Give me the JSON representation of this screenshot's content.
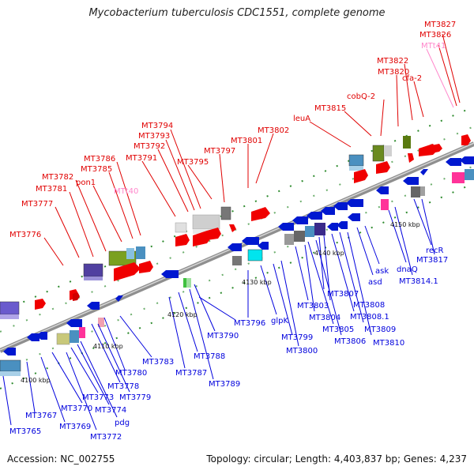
{
  "title": "Mycobacterium tuberculosis CDC1551, complete genome",
  "accession": "Accession: NC_002755",
  "summary": "Topology: circular; Length: 4,403,837 bp; Genes: 4,237",
  "colors": {
    "forward_label": "#e00000",
    "reverse_label": "#0000dd",
    "rna_label": "#ff88cc",
    "backbone": "#9a9a9a"
  },
  "ticks": [
    "4100 kbp",
    "4110 kbp",
    "4120 kbp",
    "4130 kbp",
    "4140 kbp",
    "4150 kbp"
  ],
  "labels_top": [
    "MT3776",
    "MT3777",
    "MT3781",
    "MT3782",
    "pon1",
    "MT3785",
    "MT3786",
    "MTt40",
    "MT3791",
    "MT3792",
    "MT3793",
    "MT3794",
    "MT3795",
    "MT3797",
    "MT3801",
    "MT3802",
    "leuA",
    "MT3815",
    "cobQ-2",
    "MT3820",
    "MT3822",
    "cfa-2",
    "MTt41",
    "MT3826",
    "MT3827"
  ],
  "labels_bottom": [
    "MT3765",
    "MT3767",
    "MT3769",
    "MT3770",
    "MT3772",
    "MT3773",
    "MT3774",
    "pdg",
    "MT3778",
    "MT3779",
    "MT3780",
    "MT3783",
    "MT3787",
    "MT3788",
    "MT3789",
    "MT3790",
    "MT3796",
    "glpK",
    "MT3799",
    "MT3800",
    "MT3803",
    "MT3804",
    "MT3805",
    "MT3806",
    "MT3807",
    "MT3808",
    "MT3808.1",
    "MT3809",
    "MT3810",
    "asd",
    "ask",
    "dnaQ",
    "MT3814.1",
    "recR",
    "MT3817"
  ]
}
